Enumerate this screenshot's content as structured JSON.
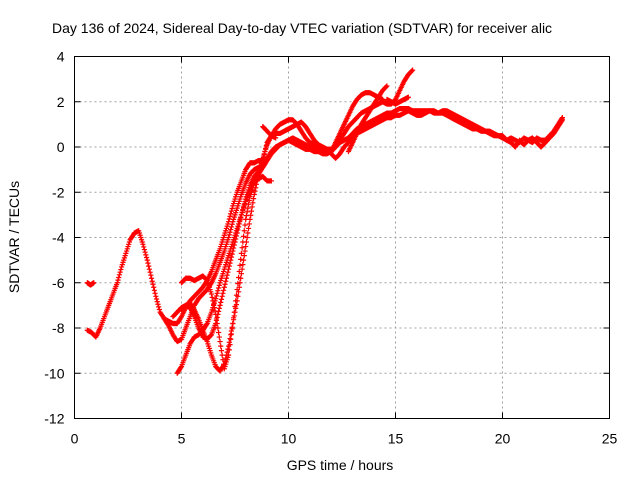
{
  "chart_data": {
    "type": "scatter",
    "title": "Day 136 of 2024, Sidereal Day-to-day VTEC variation (SDTVAR) for receiver alic",
    "xlabel": "GPS time / hours",
    "ylabel": "SDTVAR / TECUs",
    "xlim": [
      0,
      25
    ],
    "ylim": [
      -12,
      4
    ],
    "x_ticks": [
      0,
      5,
      10,
      15,
      20,
      25
    ],
    "y_ticks": [
      -12,
      -10,
      -8,
      -6,
      -4,
      -2,
      0,
      2,
      4
    ],
    "x_tick_labels": [
      "0",
      "5",
      "10",
      "15",
      "20",
      "25"
    ],
    "y_tick_labels": [
      "-12",
      "-10",
      "-8",
      "-6",
      "-4",
      "-2",
      "0",
      "2",
      "4"
    ],
    "grid": true,
    "marker": "+",
    "color": "#ff0000",
    "series": [
      {
        "x": [
          0.6,
          0.75,
          0.9
        ],
        "y": [
          -6.0,
          -6.1,
          -6.0
        ]
      },
      {
        "x": [
          0.6,
          0.8,
          1.0,
          1.2,
          1.4,
          1.6,
          1.8,
          2.0,
          2.2,
          2.4,
          2.6,
          2.8,
          3.0,
          3.2,
          3.4,
          3.6,
          3.8,
          4.0,
          4.2,
          4.4,
          4.6,
          4.8,
          5.0,
          5.2,
          5.4,
          5.6,
          5.8,
          6.0,
          6.2,
          6.4,
          6.6,
          6.8,
          7.0,
          7.2,
          7.4,
          7.6,
          7.8,
          8.0,
          8.2,
          8.4,
          8.6,
          8.8,
          9.0,
          9.2,
          9.4,
          9.6,
          9.8,
          10.0,
          10.2,
          10.4,
          10.6,
          10.8,
          11.0,
          11.2,
          11.4,
          11.6,
          11.8,
          12.0,
          12.2,
          12.4,
          12.6,
          12.8,
          13.0,
          13.2,
          13.4,
          13.6,
          13.8,
          14.0,
          14.2,
          14.4
        ],
        "y": [
          -8.1,
          -8.2,
          -8.4,
          -8.0,
          -7.5,
          -7.0,
          -6.5,
          -6.0,
          -5.3,
          -4.7,
          -4.1,
          -3.8,
          -3.7,
          -4.3,
          -5.0,
          -5.8,
          -6.6,
          -7.3,
          -7.6,
          -7.7,
          -7.8,
          -7.8,
          -7.5,
          -7.1,
          -6.8,
          -6.6,
          -6.4,
          -6.2,
          -5.9,
          -5.5,
          -5.0,
          -4.5,
          -3.9,
          -3.3,
          -2.6,
          -2.0,
          -1.5,
          -1.0,
          -0.7,
          -0.7,
          -0.6,
          -0.6,
          0.2,
          0.5,
          0.8,
          1.0,
          1.1,
          1.2,
          1.2,
          1.0,
          0.7,
          0.4,
          0.2,
          0.1,
          0.0,
          -0.1,
          -0.2,
          -0.2,
          0.2,
          0.6,
          1.0,
          1.4,
          1.8,
          2.1,
          2.3,
          2.4,
          2.4,
          2.3,
          2.2,
          2.1
        ]
      },
      {
        "x": [
          4.2,
          4.4,
          4.6,
          4.8,
          5.0,
          5.2,
          5.4,
          5.6,
          5.8,
          6.0,
          6.2,
          6.4,
          6.6,
          6.8,
          7.0,
          7.2,
          7.4,
          7.6,
          7.8,
          8.0,
          8.2,
          8.4,
          8.6,
          8.8,
          9.0,
          9.2,
          9.4,
          9.6,
          9.8,
          10.0,
          10.2,
          10.4,
          10.6,
          10.8,
          11.0,
          11.2,
          11.4,
          11.6,
          11.8,
          12.0,
          12.2,
          12.4,
          12.6,
          12.8,
          13.0,
          13.2,
          13.4,
          13.6,
          13.8,
          14.0,
          14.2,
          14.4,
          14.6,
          14.8,
          15.0,
          15.2,
          15.4,
          15.6,
          15.8
        ],
        "y": [
          -7.6,
          -7.9,
          -8.3,
          -8.6,
          -8.5,
          -8.0,
          -7.5,
          -7.0,
          -6.7,
          -6.5,
          -6.3,
          -6.0,
          -5.6,
          -5.1,
          -4.6,
          -4.0,
          -3.3,
          -2.7,
          -2.1,
          -1.6,
          -1.2,
          -1.0,
          -0.9,
          -0.8,
          -0.5,
          -0.2,
          0.0,
          0.1,
          0.2,
          0.3,
          0.4,
          0.3,
          0.2,
          0.1,
          0.0,
          -0.1,
          -0.2,
          -0.3,
          -0.3,
          -0.2,
          0.0,
          0.3,
          0.6,
          0.9,
          1.1,
          1.3,
          1.5,
          1.6,
          1.7,
          1.8,
          1.9,
          2.0,
          1.9,
          1.9,
          2.1,
          2.5,
          2.9,
          3.2,
          3.4
        ]
      },
      {
        "x": [
          4.8,
          5.0,
          5.2,
          5.4,
          5.6,
          5.8,
          6.0,
          6.2,
          6.4,
          6.6,
          6.8,
          7.0,
          7.2,
          7.4,
          7.6,
          7.8,
          8.0,
          8.2,
          8.4,
          8.6,
          8.8,
          9.0,
          9.2,
          9.4,
          9.6,
          9.8,
          10.0,
          10.2,
          10.4,
          10.6,
          10.8,
          11.0,
          11.2,
          11.4,
          11.6,
          11.8,
          12.0,
          12.2,
          12.4,
          12.6,
          12.8,
          13.0,
          13.2,
          13.4,
          13.6,
          13.8,
          14.0,
          14.2,
          14.4,
          14.6,
          14.8,
          15.0,
          15.2,
          15.4,
          15.6,
          15.8,
          16.0,
          16.2,
          16.4,
          16.6,
          16.8,
          17.0,
          17.2,
          17.4,
          17.6,
          17.8,
          18.0,
          18.2,
          18.4,
          18.6,
          18.8,
          19.0,
          19.2,
          19.4,
          19.6,
          19.8,
          20.0,
          20.2,
          20.4,
          20.6,
          20.8,
          21.0,
          21.2,
          21.4,
          21.6,
          21.8,
          22.0,
          22.2,
          22.4,
          22.6,
          22.8
        ],
        "y": [
          -10.0,
          -9.7,
          -9.2,
          -8.7,
          -8.4,
          -8.3,
          -8.1,
          -7.8,
          -7.3,
          -6.7,
          -6.0,
          -5.4,
          -4.8,
          -4.2,
          -3.6,
          -3.0,
          -2.4,
          -1.9,
          -1.5,
          -1.2,
          -0.9,
          -0.6,
          -0.3,
          -0.1,
          0.1,
          0.2,
          0.3,
          0.2,
          0.1,
          0.0,
          -0.1,
          -0.1,
          -0.2,
          -0.2,
          -0.1,
          -0.1,
          -0.3,
          -0.5,
          -0.3,
          0.0,
          0.2,
          0.4,
          0.6,
          0.7,
          0.8,
          0.9,
          1.0,
          1.1,
          1.2,
          1.3,
          1.3,
          1.4,
          1.4,
          1.5,
          1.6,
          1.5,
          1.4,
          1.4,
          1.5,
          1.6,
          1.6,
          1.5,
          1.5,
          1.4,
          1.3,
          1.2,
          1.1,
          1.0,
          0.9,
          0.8,
          0.8,
          0.7,
          0.7,
          0.6,
          0.5,
          0.5,
          0.4,
          0.3,
          0.4,
          0.3,
          0.2,
          0.4,
          0.3,
          0.2,
          0.4,
          0.3,
          0.3,
          0.5,
          0.7,
          1.0,
          1.3
        ]
      },
      {
        "x": [
          5.0,
          5.2,
          5.4,
          5.6,
          5.8,
          6.0,
          6.2,
          6.4,
          6.6,
          6.8,
          7.0,
          7.2,
          7.4,
          7.6,
          7.8,
          8.0,
          8.2,
          8.4,
          8.6,
          8.8,
          9.0,
          9.2,
          9.4,
          9.6,
          9.8,
          10.0,
          10.2,
          10.4,
          10.6,
          10.8,
          11.0,
          11.2,
          11.4,
          11.6,
          11.8,
          12.0,
          12.2,
          12.4,
          12.6,
          12.8,
          13.0,
          13.2,
          13.4,
          13.6,
          13.8,
          14.0,
          14.2,
          14.4,
          14.6,
          14.8,
          15.0,
          15.2,
          15.4,
          15.6,
          15.8,
          16.0,
          16.2,
          16.4,
          16.6,
          16.8,
          17.0,
          17.2,
          17.4,
          17.6,
          17.8,
          18.0,
          18.2,
          18.4,
          18.6,
          18.8,
          19.0,
          19.2,
          19.4,
          19.6,
          19.8,
          20.0,
          20.2,
          20.4,
          20.6,
          20.8,
          21.0,
          21.2,
          21.4,
          21.6,
          21.8,
          22.0,
          22.2,
          22.4,
          22.6,
          22.8
        ],
        "y": [
          -7.2,
          -7.0,
          -6.9,
          -7.2,
          -7.6,
          -8.1,
          -8.6,
          -9.2,
          -9.7,
          -9.9,
          -9.6,
          -8.8,
          -7.8,
          -6.8,
          -5.6,
          -4.4,
          -3.2,
          -2.1,
          -1.2,
          -0.5,
          0.1,
          0.5,
          0.6,
          0.6,
          0.7,
          0.8,
          0.9,
          1.0,
          1.1,
          0.9,
          0.6,
          0.3,
          0.1,
          0.0,
          -0.1,
          -0.1,
          0.0,
          0.2,
          0.3,
          0.4,
          0.6,
          0.8,
          0.9,
          1.0,
          1.1,
          1.2,
          1.3,
          1.4,
          1.5,
          1.5,
          1.6,
          1.7,
          1.7,
          1.7,
          1.6,
          1.6,
          1.6,
          1.6,
          1.6,
          1.5,
          1.5,
          1.6,
          1.6,
          1.5,
          1.4,
          1.3,
          1.2,
          1.1,
          1.0,
          0.9,
          0.8,
          0.7,
          0.7,
          0.6,
          0.5,
          0.5,
          0.3,
          0.2,
          0.0,
          0.3,
          0.1,
          0.3,
          0.4,
          0.2,
          0.0,
          0.2,
          0.4,
          0.6,
          0.9,
          1.2
        ]
      },
      {
        "x": [
          4.6,
          4.8,
          5.0,
          5.2,
          5.4,
          5.6,
          5.8,
          6.0,
          6.2,
          6.4,
          6.6,
          6.8,
          7.0,
          7.2,
          7.4,
          7.6,
          7.8,
          8.0,
          8.2,
          8.4,
          8.6
        ],
        "y": [
          -7.5,
          -7.3,
          -7.1,
          -7.0,
          -7.1,
          -7.5,
          -8.0,
          -8.4,
          -8.5,
          -8.3,
          -7.8,
          -7.0,
          -6.2,
          -5.4,
          -4.6,
          -3.8,
          -3.0,
          -2.3,
          -1.7,
          -1.3,
          -1.1
        ]
      },
      {
        "x": [
          5.0,
          5.2,
          5.4,
          5.6,
          5.8,
          6.0,
          6.2,
          6.4,
          6.6,
          6.8,
          7.0,
          7.2,
          7.4,
          7.6,
          7.8,
          8.0,
          8.2,
          8.4,
          8.6,
          8.8,
          9.0,
          9.2
        ],
        "y": [
          -6.0,
          -5.8,
          -5.8,
          -5.9,
          -5.8,
          -5.7,
          -5.9,
          -6.5,
          -7.4,
          -8.6,
          -9.8,
          -9.2,
          -7.8,
          -6.3,
          -4.7,
          -3.2,
          -2.2,
          -1.6,
          -1.4,
          -1.3,
          -1.5,
          -1.5
        ]
      },
      {
        "x": [
          8.8,
          9.0,
          9.2,
          9.4
        ],
        "y": [
          0.9,
          0.7,
          0.5,
          0.4
        ]
      },
      {
        "x": [
          12.8,
          13.0,
          13.2,
          13.4,
          13.6,
          13.8,
          14.0,
          14.2,
          14.4,
          14.6
        ],
        "y": [
          -0.2,
          0.2,
          0.6,
          1.0,
          1.3,
          1.6,
          1.9,
          2.2,
          2.5,
          2.7
        ]
      },
      {
        "x": [
          14.6,
          14.8,
          15.0,
          15.2,
          15.4,
          15.6
        ],
        "y": [
          2.1,
          2.0,
          1.9,
          2.0,
          2.1,
          2.2
        ]
      }
    ]
  }
}
